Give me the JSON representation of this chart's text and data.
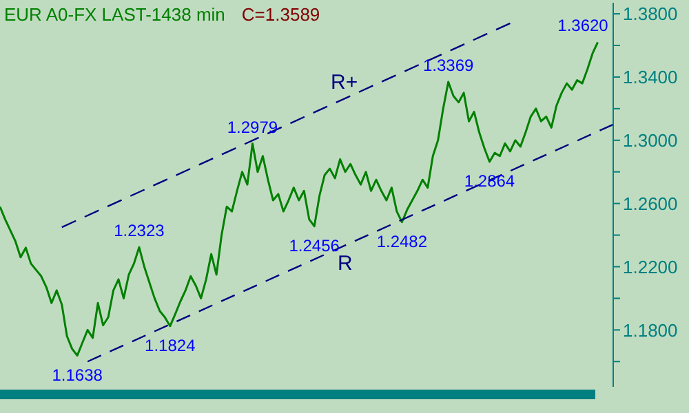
{
  "chart_data": {
    "type": "line",
    "title": "EUR A0-FX LAST-1438 min",
    "subtitle": "C=1.3589",
    "categories": [
      null,
      null,
      null,
      null,
      null,
      null,
      null,
      null,
      null,
      null,
      null,
      null,
      null,
      null,
      null,
      null,
      null,
      null,
      null,
      null,
      null,
      null,
      null,
      null,
      null,
      null,
      null,
      null,
      null,
      null,
      null,
      null,
      null,
      null,
      null,
      null,
      null,
      null,
      null,
      null,
      null,
      null,
      null,
      null,
      null,
      null,
      null,
      null,
      null,
      null,
      null,
      null,
      null,
      null,
      null,
      null,
      null,
      null,
      null,
      null,
      null,
      null,
      null,
      null,
      null,
      null,
      null,
      null,
      null,
      null,
      null,
      null,
      null,
      null,
      null,
      null,
      null,
      null,
      null,
      null,
      null,
      null,
      null,
      null,
      null,
      null,
      null,
      null,
      null,
      null,
      null,
      null,
      null,
      null,
      null,
      null,
      null,
      null,
      null,
      null,
      null,
      null,
      null,
      null,
      null,
      null,
      null,
      null,
      null,
      null,
      null,
      null,
      null,
      null,
      null,
      null,
      null,
      null,
      null,
      null
    ],
    "series": [
      {
        "color": "#008000",
        "values": [
          1.258,
          1.25,
          1.243,
          1.236,
          1.226,
          1.232,
          1.222,
          1.218,
          1.214,
          1.207,
          1.197,
          1.205,
          1.196,
          1.176,
          1.168,
          1.1638,
          1.172,
          1.18,
          1.175,
          1.197,
          1.183,
          1.188,
          1.205,
          1.212,
          1.2,
          1.215,
          1.222,
          1.2323,
          1.22,
          1.21,
          1.2,
          1.192,
          1.188,
          1.1824,
          1.19,
          1.198,
          1.205,
          1.214,
          1.208,
          1.2,
          1.212,
          1.228,
          1.215,
          1.24,
          1.258,
          1.255,
          1.268,
          1.28,
          1.272,
          1.2979,
          1.28,
          1.29,
          1.275,
          1.262,
          1.266,
          1.255,
          1.262,
          1.27,
          1.262,
          1.268,
          1.25,
          1.2456,
          1.265,
          1.278,
          1.282,
          1.276,
          1.288,
          1.28,
          1.285,
          1.278,
          1.272,
          1.28,
          1.268,
          1.275,
          1.268,
          1.262,
          1.27,
          1.255,
          1.2482,
          1.256,
          1.262,
          1.268,
          1.275,
          1.27,
          1.29,
          1.3,
          1.32,
          1.3369,
          1.328,
          1.324,
          1.33,
          1.312,
          1.318,
          1.305,
          1.295,
          1.2864,
          1.292,
          1.29,
          1.298,
          1.293,
          1.3,
          1.296,
          1.305,
          1.315,
          1.32,
          1.312,
          1.315,
          1.308,
          1.322,
          1.33,
          1.336,
          1.332,
          1.338,
          1.336,
          1.345,
          1.355,
          1.362,
          null,
          null,
          null
        ],
        "value_labels": [
          null,
          null,
          null,
          null,
          null,
          null,
          null,
          null,
          null,
          null,
          null,
          null,
          null,
          null,
          null,
          "1.1638",
          null,
          null,
          null,
          null,
          null,
          null,
          null,
          null,
          null,
          null,
          null,
          "1.2323",
          null,
          null,
          null,
          null,
          null,
          "1.1824",
          null,
          null,
          null,
          null,
          null,
          null,
          null,
          null,
          null,
          null,
          null,
          null,
          null,
          null,
          null,
          "1.2979",
          null,
          null,
          null,
          null,
          null,
          null,
          null,
          null,
          null,
          null,
          null,
          "1.2456",
          null,
          null,
          null,
          null,
          null,
          null,
          null,
          null,
          null,
          null,
          null,
          null,
          null,
          null,
          null,
          null,
          "1.2482",
          null,
          null,
          null,
          null,
          null,
          null,
          null,
          null,
          "1.3369",
          null,
          null,
          null,
          null,
          null,
          null,
          null,
          "1.2864",
          null,
          null,
          null,
          null,
          null,
          null,
          null,
          null,
          null,
          null,
          null,
          null,
          null,
          null,
          null,
          null,
          null,
          null,
          null,
          null,
          "1.3620",
          null,
          null,
          null
        ]
      },
      {
        "name": "R+",
        "type": "line",
        "color": "#000080",
        "line_style": "dashed",
        "values": [
          null,
          null,
          null,
          null,
          null,
          null,
          null,
          null,
          null,
          null,
          null,
          null,
          1.245,
          null,
          null,
          null,
          null,
          null,
          null,
          null,
          null,
          null,
          null,
          null,
          null,
          null,
          null,
          null,
          null,
          null,
          null,
          null,
          null,
          null,
          null,
          null,
          null,
          null,
          null,
          null,
          null,
          null,
          null,
          null,
          null,
          null,
          null,
          null,
          null,
          null,
          null,
          null,
          null,
          null,
          null,
          null,
          null,
          null,
          null,
          null,
          null,
          null,
          null,
          null,
          null,
          null,
          null,
          null,
          null,
          null,
          null,
          null,
          null,
          null,
          null,
          null,
          null,
          null,
          null,
          null,
          null,
          null,
          null,
          null,
          null,
          null,
          null,
          null,
          null,
          null,
          null,
          null,
          null,
          null,
          null,
          null,
          null,
          null,
          null,
          1.374,
          null,
          null,
          null,
          null,
          null,
          null,
          null,
          null,
          null,
          null,
          null,
          null,
          null,
          null,
          null,
          null,
          null,
          null,
          null,
          null
        ]
      },
      {
        "name": "R",
        "type": "line",
        "color": "#000080",
        "line_style": "dashed",
        "values": [
          null,
          null,
          null,
          null,
          null,
          null,
          null,
          null,
          null,
          null,
          null,
          null,
          null,
          null,
          null,
          null,
          null,
          1.16,
          null,
          null,
          null,
          null,
          null,
          null,
          null,
          null,
          null,
          null,
          null,
          null,
          null,
          null,
          null,
          null,
          null,
          null,
          null,
          null,
          null,
          null,
          null,
          null,
          null,
          null,
          null,
          null,
          null,
          null,
          null,
          null,
          null,
          null,
          null,
          null,
          null,
          null,
          null,
          null,
          null,
          null,
          null,
          null,
          null,
          null,
          null,
          null,
          null,
          null,
          null,
          null,
          null,
          null,
          null,
          null,
          null,
          null,
          null,
          null,
          null,
          null,
          null,
          null,
          null,
          null,
          null,
          null,
          null,
          null,
          null,
          null,
          null,
          null,
          null,
          null,
          null,
          null,
          null,
          null,
          null,
          null,
          null,
          null,
          null,
          null,
          null,
          null,
          null,
          null,
          null,
          null,
          null,
          null,
          null,
          null,
          null,
          null,
          null,
          null,
          null,
          1.31
        ]
      }
    ],
    "ylim": [
      1.144,
      1.387
    ],
    "yticks": [
      {
        "value": 1.16,
        "label": null
      },
      {
        "value": 1.18,
        "label": "1.1800"
      },
      {
        "value": 1.2,
        "label": null
      },
      {
        "value": 1.22,
        "label": "1.2200"
      },
      {
        "value": 1.24,
        "label": null
      },
      {
        "value": 1.26,
        "label": "1.2600"
      },
      {
        "value": 1.28,
        "label": null
      },
      {
        "value": 1.3,
        "label": "1.3000"
      },
      {
        "value": 1.32,
        "label": null
      },
      {
        "value": 1.34,
        "label": "1.3400"
      },
      {
        "value": 1.36,
        "label": null
      },
      {
        "value": 1.38,
        "label": "1.3800"
      }
    ],
    "tick_labels": "y",
    "grid": false,
    "legend": false,
    "marker": "none"
  }
}
